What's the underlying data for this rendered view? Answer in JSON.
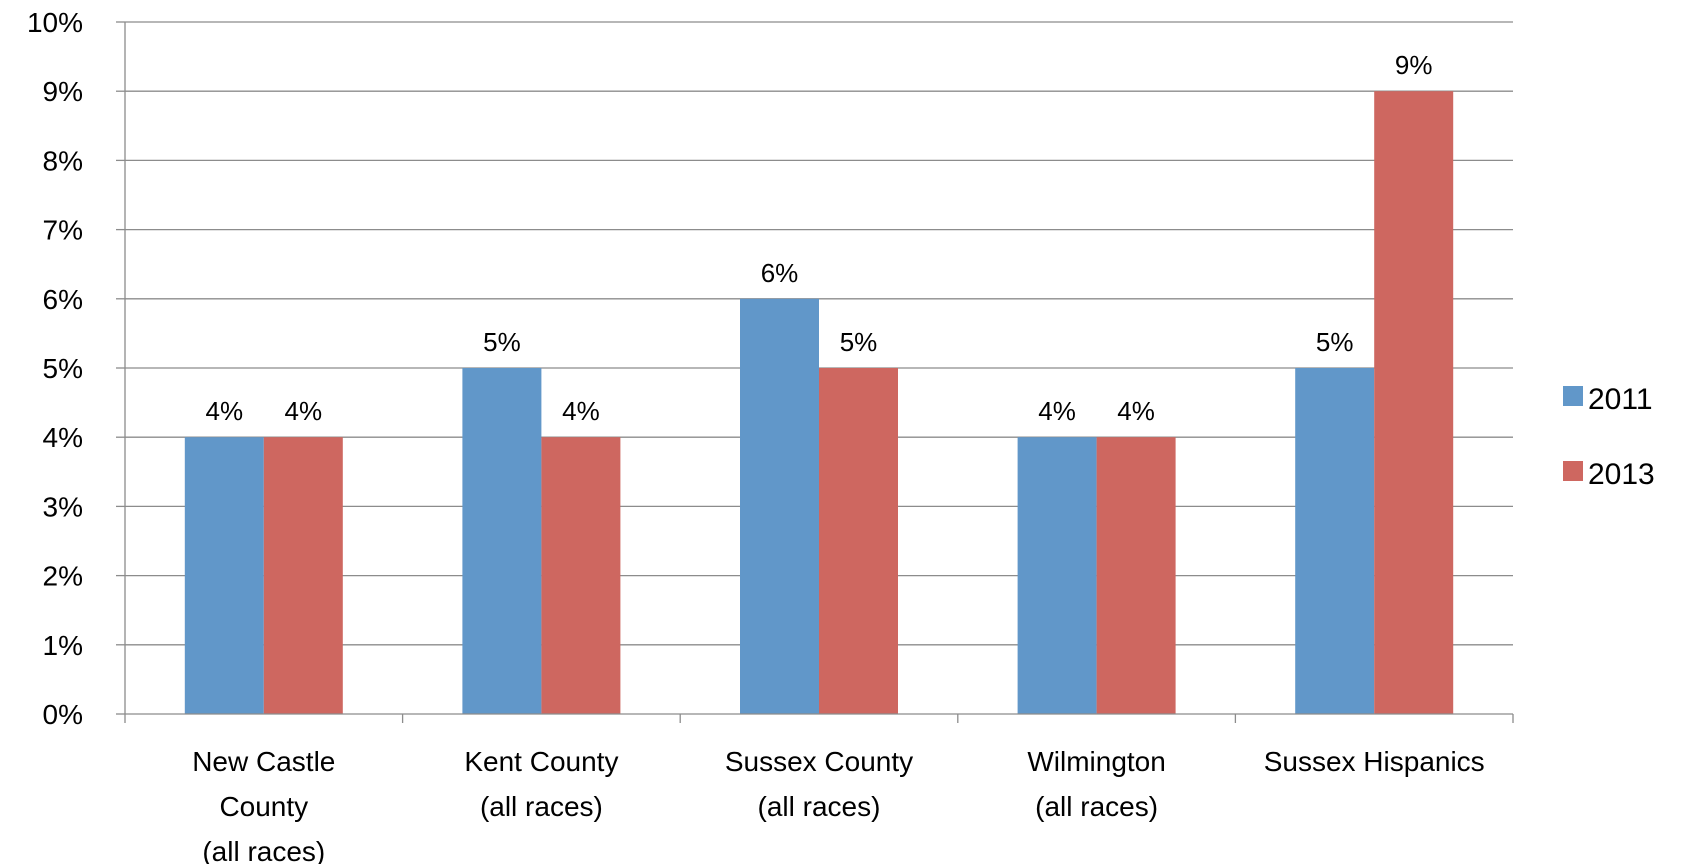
{
  "chart_data": {
    "type": "bar",
    "title": "",
    "xlabel": "",
    "ylabel": "",
    "ylim": [
      0,
      10
    ],
    "y_ticks": [
      "0%",
      "1%",
      "2%",
      "3%",
      "4%",
      "5%",
      "6%",
      "7%",
      "8%",
      "9%",
      "10%"
    ],
    "y_unit": "%",
    "grid": true,
    "legend_position": "right",
    "categories": [
      [
        "New Castle",
        "County",
        "(all races)"
      ],
      [
        "Kent County",
        "(all races)"
      ],
      [
        "Sussex County",
        "(all races)"
      ],
      [
        "Wilmington",
        "(all races)"
      ],
      [
        "Sussex Hispanics"
      ]
    ],
    "series": [
      {
        "name": "2011",
        "color": "#6197C9",
        "values": [
          4,
          5,
          6,
          4,
          5
        ],
        "labels": [
          "4%",
          "5%",
          "6%",
          "4%",
          "5%"
        ]
      },
      {
        "name": "2013",
        "color": "#CE6760",
        "values": [
          4,
          4,
          5,
          4,
          9
        ],
        "labels": [
          "4%",
          "4%",
          "5%",
          "4%",
          "9%"
        ]
      }
    ]
  }
}
